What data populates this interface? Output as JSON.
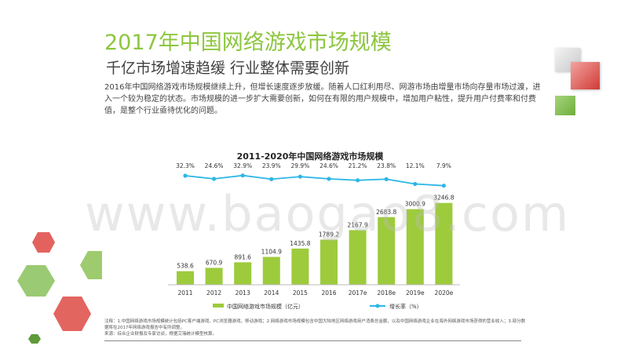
{
  "page": {
    "title": "2017年中国网络游戏市场规模",
    "subtitle": "千亿市场增速趋缓 行业整体需要创新",
    "intro": "2016年中国网络游戏市场规模继续上升，但增长速度逐步放缓。随着人口红利用尽、网游市场由增量市场向存量市场过渡，进入一个较为稳定的状态。市场规模的进一步扩大需要创新，如何在有限的用户规模中，增加用户粘性，提升用户付费率和付费值，是整个行业亟待优化的问题。",
    "watermark": "www.baogao8.com",
    "notes_line1": "注释：1.中国网络游戏市场规模统计包括PC客户端游戏、PC浏览器游戏、移动游戏；2.网络游戏市场规模包含中国大陆地区网络游戏用户消费总金额，以及中国网络游戏企业在海外网络游戏市场获得的营业收入；3.部分数据将在2017年网络游戏报告中有所调整。",
    "notes_line2": "来源：综合企业财报及专家访谈，根据艾瑞统计模型核算。"
  },
  "colors": {
    "accent_green": "#8dc63f",
    "bar_green": "#9dcb3c",
    "line_blue": "#2db7e6",
    "red": "#d9534f"
  },
  "chart_data": {
    "type": "bar",
    "title": "2011-2020年中国网络游戏市场规模",
    "categories": [
      "2011",
      "2012",
      "2013",
      "2014",
      "2015",
      "2016",
      "2017e",
      "2018e",
      "2019e",
      "2020e"
    ],
    "series": [
      {
        "name": "中国网络游戏市场规模（亿元）",
        "type": "bar",
        "values": [
          538.6,
          670.9,
          891.6,
          1104.9,
          1435.8,
          1789.2,
          2167.9,
          2683.8,
          3000.9,
          3246.8
        ],
        "labels": [
          "538.6",
          "670.9",
          "891.6",
          "1104.9",
          "1435.8",
          "1789.2",
          "2167.9",
          "2683.8",
          "3000.9",
          "3246.8"
        ]
      },
      {
        "name": "增长率（%）",
        "type": "line",
        "values": [
          32.3,
          24.6,
          32.9,
          23.9,
          29.9,
          24.6,
          21.2,
          23.8,
          12.1,
          7.9
        ],
        "labels": [
          "32.3%",
          "24.6%",
          "32.9%",
          "23.9%",
          "29.9%",
          "24.6%",
          "21.2%",
          "23.8%",
          "12.1%",
          "7.9%"
        ]
      }
    ],
    "ylim": [
      0,
      3300
    ],
    "legend": "bottom"
  }
}
